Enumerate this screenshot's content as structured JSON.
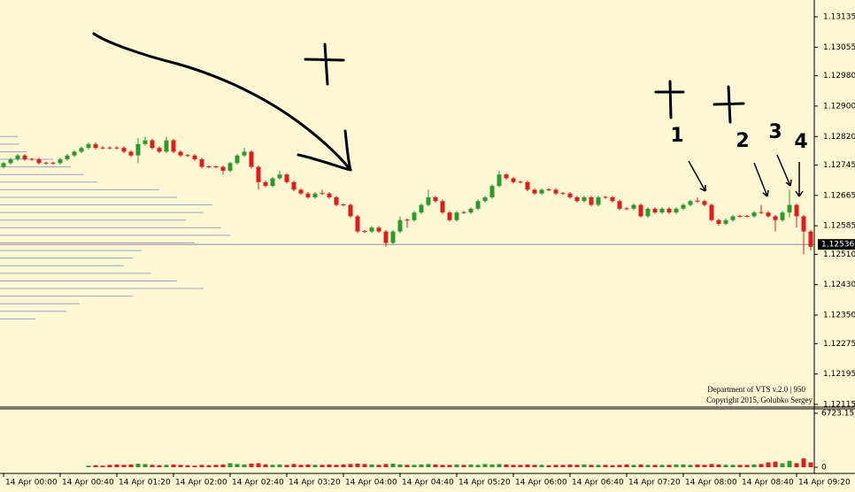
{
  "chart_data": {
    "type": "candlestick",
    "xlim": [
      -0.5,
      114.5
    ],
    "xticks": [
      {
        "value": 0,
        "label": "14 Apr 00:00"
      },
      {
        "value": 8,
        "label": "14 Apr 00:40"
      },
      {
        "value": 16,
        "label": "14 Apr 01:20"
      },
      {
        "value": 24,
        "label": "14 Apr 02:00"
      },
      {
        "value": 32,
        "label": "14 Apr 02:40"
      },
      {
        "value": 40,
        "label": "14 Apr 03:20"
      },
      {
        "value": 48,
        "label": "14 Apr 04:00"
      },
      {
        "value": 56,
        "label": "14 Apr 04:40"
      },
      {
        "value": 64,
        "label": "14 Apr 05:20"
      },
      {
        "value": 72,
        "label": "14 Apr 06:00"
      },
      {
        "value": 80,
        "label": "14 Apr 06:40"
      },
      {
        "value": 88,
        "label": "14 Apr 07:20"
      },
      {
        "value": 96,
        "label": "14 Apr 08:00"
      },
      {
        "value": 104,
        "label": "14 Apr 08:40"
      },
      {
        "value": 112,
        "label": "14 Apr 09:20"
      }
    ],
    "ylim": [
      1.12115,
      1.13135
    ],
    "yticks": [
      1.13135,
      1.13055,
      {
        "value": 1.1298,
        "label": "1.12980"
      },
      {
        "value": 1.129,
        "label": "1.12900"
      },
      {
        "value": 1.1282,
        "label": "1.12820"
      },
      1.12745,
      1.12665,
      1.12585,
      {
        "value": 1.1251,
        "label": "1.12510"
      },
      {
        "value": 1.1243,
        "label": "1.12430"
      },
      {
        "value": 1.1235,
        "label": "1.12350"
      },
      1.12275,
      1.12195,
      1.12115
    ],
    "colors": {
      "up": "#2b9a2b",
      "down": "#e11b1b"
    },
    "open": [
      1.1274,
      1.1275,
      1.1276,
      1.1277,
      1.1276,
      1.1276,
      1.1275,
      1.1275,
      1.1275,
      1.1276,
      1.1277,
      1.1278,
      1.1279,
      1.128,
      1.1279,
      1.1279,
      1.1279,
      1.1279,
      1.1278,
      1.1277,
      1.128,
      1.1281,
      1.1279,
      1.1278,
      1.1281,
      1.1278,
      1.1277,
      1.1277,
      1.1276,
      1.1274,
      1.1274,
      1.1274,
      1.1273,
      1.1275,
      1.1277,
      1.1278,
      1.1274,
      1.127,
      1.1269,
      1.1271,
      1.1272,
      1.127,
      1.1268,
      1.1267,
      1.1266,
      1.1267,
      1.1267,
      1.1266,
      1.1264,
      1.1264,
      1.1261,
      1.1257,
      1.1257,
      1.1258,
      1.1257,
      1.1254,
      1.1257,
      1.126,
      1.126,
      1.1262,
      1.1264,
      1.1266,
      1.1265,
      1.1262,
      1.126,
      1.1262,
      1.1262,
      1.1263,
      1.1265,
      1.1266,
      1.1269,
      1.1272,
      1.1271,
      1.127,
      1.127,
      1.1268,
      1.1267,
      1.1268,
      1.1268,
      1.1267,
      1.1267,
      1.1266,
      1.1265,
      1.1266,
      1.1264,
      1.1266,
      1.1266,
      1.1265,
      1.1263,
      1.1263,
      1.1264,
      1.1261,
      1.1263,
      1.1262,
      1.1263,
      1.1262,
      1.1263,
      1.1264,
      1.1265,
      1.1265,
      1.1264,
      1.126,
      1.1259,
      1.126,
      1.1261,
      1.1261,
      1.1261,
      1.1262,
      1.1262,
      1.1261,
      1.126,
      1.1262,
      1.1264,
      1.1261,
      1.1257
    ],
    "high": [
      1.12754,
      1.12764,
      1.12774,
      1.12774,
      1.12764,
      1.12764,
      1.12754,
      1.12754,
      1.12764,
      1.12774,
      1.12784,
      1.12794,
      1.12804,
      1.12804,
      1.12794,
      1.12794,
      1.12794,
      1.12794,
      1.12784,
      1.12816,
      1.1282,
      1.12814,
      1.12794,
      1.1282,
      1.12814,
      1.12784,
      1.12774,
      1.12774,
      1.12764,
      1.12744,
      1.12744,
      1.12744,
      1.12754,
      1.12774,
      1.1279,
      1.12784,
      1.12744,
      1.12704,
      1.12714,
      1.1273,
      1.12724,
      1.12704,
      1.12684,
      1.12674,
      1.12674,
      1.1268,
      1.12674,
      1.12664,
      1.12644,
      1.12644,
      1.12614,
      1.12574,
      1.12584,
      1.12584,
      1.12574,
      1.12574,
      1.1261,
      1.12604,
      1.12624,
      1.12644,
      1.1268,
      1.12664,
      1.12654,
      1.12624,
      1.12624,
      1.12624,
      1.12634,
      1.12654,
      1.12664,
      1.12694,
      1.1273,
      1.12724,
      1.12714,
      1.12704,
      1.12704,
      1.12684,
      1.12684,
      1.12684,
      1.12684,
      1.12674,
      1.12674,
      1.12664,
      1.12664,
      1.12664,
      1.12664,
      1.12664,
      1.12664,
      1.12654,
      1.12634,
      1.12644,
      1.12644,
      1.12634,
      1.12634,
      1.12634,
      1.12634,
      1.12634,
      1.12644,
      1.12654,
      1.1266,
      1.12654,
      1.12644,
      1.12604,
      1.12604,
      1.12614,
      1.12614,
      1.12614,
      1.12624,
      1.1264,
      1.12624,
      1.12614,
      1.12624,
      1.1268,
      1.12644,
      1.12614,
      1.12574
    ],
    "low": [
      1.12736,
      1.12746,
      1.12756,
      1.12756,
      1.12756,
      1.12746,
      1.12746,
      1.12746,
      1.12746,
      1.12756,
      1.12766,
      1.12776,
      1.12786,
      1.12786,
      1.12786,
      1.12786,
      1.12786,
      1.12776,
      1.12766,
      1.1275,
      1.12796,
      1.12786,
      1.12776,
      1.12776,
      1.12776,
      1.12766,
      1.12766,
      1.12756,
      1.12736,
      1.12736,
      1.12736,
      1.1272,
      1.12726,
      1.12746,
      1.12766,
      1.12736,
      1.1268,
      1.12686,
      1.12686,
      1.12706,
      1.12696,
      1.12676,
      1.12666,
      1.12656,
      1.12656,
      1.12666,
      1.12656,
      1.12636,
      1.12636,
      1.12606,
      1.12566,
      1.12566,
      1.12566,
      1.12566,
      1.1253,
      1.12536,
      1.12566,
      1.1258,
      1.12596,
      1.12616,
      1.12636,
      1.12646,
      1.12616,
      1.12596,
      1.12596,
      1.12616,
      1.12616,
      1.12626,
      1.12646,
      1.12656,
      1.12686,
      1.12706,
      1.12696,
      1.12696,
      1.12676,
      1.12666,
      1.12666,
      1.12676,
      1.12666,
      1.12666,
      1.12656,
      1.12646,
      1.12646,
      1.12636,
      1.12636,
      1.12656,
      1.12646,
      1.12626,
      1.12626,
      1.12626,
      1.12606,
      1.12606,
      1.12616,
      1.12616,
      1.12616,
      1.12616,
      1.12626,
      1.12636,
      1.12646,
      1.12636,
      1.12596,
      1.12586,
      1.12586,
      1.12596,
      1.12606,
      1.12606,
      1.12606,
      1.12616,
      1.12606,
      1.1257,
      1.12596,
      1.12606,
      1.1258,
      1.1251,
      1.1252
    ],
    "close": [
      1.1275,
      1.1276,
      1.1277,
      1.1276,
      1.1276,
      1.1275,
      1.1275,
      1.1275,
      1.1276,
      1.1277,
      1.1278,
      1.1279,
      1.128,
      1.1279,
      1.1279,
      1.1279,
      1.1279,
      1.1278,
      1.1277,
      1.128,
      1.1281,
      1.1279,
      1.1278,
      1.1281,
      1.1278,
      1.1277,
      1.1277,
      1.1276,
      1.1274,
      1.1274,
      1.1274,
      1.1273,
      1.1275,
      1.1277,
      1.1278,
      1.1274,
      1.127,
      1.1269,
      1.1271,
      1.1272,
      1.127,
      1.1268,
      1.1267,
      1.1266,
      1.1267,
      1.1267,
      1.1266,
      1.1264,
      1.1264,
      1.1261,
      1.1257,
      1.1257,
      1.1258,
      1.1257,
      1.1254,
      1.1257,
      1.126,
      1.126,
      1.1262,
      1.1264,
      1.1266,
      1.1265,
      1.1262,
      1.126,
      1.1262,
      1.1262,
      1.1263,
      1.1265,
      1.1266,
      1.1269,
      1.1272,
      1.1271,
      1.127,
      1.127,
      1.1268,
      1.1267,
      1.1268,
      1.1268,
      1.1267,
      1.1267,
      1.1266,
      1.1265,
      1.1266,
      1.1264,
      1.1266,
      1.1266,
      1.1265,
      1.1263,
      1.1263,
      1.1264,
      1.1261,
      1.1263,
      1.1262,
      1.1263,
      1.1262,
      1.1263,
      1.1264,
      1.1265,
      1.1265,
      1.1264,
      1.126,
      1.1259,
      1.126,
      1.1261,
      1.1261,
      1.1261,
      1.1262,
      1.1262,
      1.1261,
      1.126,
      1.1262,
      1.1264,
      1.1261,
      1.1257,
      1.1253
    ],
    "current_price": 1.12536,
    "volume": {
      "ylim": [
        0,
        6723.15
      ],
      "yticks": [
        6723.15,
        0
      ],
      "values": [
        0,
        0,
        0,
        0,
        0,
        0,
        0,
        0,
        0,
        0,
        0,
        0,
        200,
        250,
        200,
        300,
        350,
        300,
        350,
        450,
        400,
        300,
        250,
        300,
        350,
        300,
        250,
        200,
        300,
        250,
        300,
        350,
        500,
        400,
        350,
        450,
        500,
        350,
        300,
        350,
        300,
        400,
        300,
        350,
        300,
        300,
        350,
        300,
        350,
        400,
        450,
        400,
        350,
        300,
        400,
        450,
        350,
        300,
        300,
        350,
        400,
        350,
        300,
        300,
        350,
        300,
        350,
        300,
        400,
        350,
        400,
        350,
        300,
        300,
        350,
        300,
        300,
        250,
        300,
        300,
        350,
        300,
        350,
        300,
        300,
        300,
        250,
        300,
        350,
        300,
        350,
        300,
        300,
        300,
        300,
        350,
        350,
        300,
        350,
        300,
        400,
        350,
        300,
        300,
        300,
        300,
        350,
        400,
        600,
        700,
        500,
        800,
        500,
        1100,
        600
      ]
    },
    "volume_profile": {
      "prices": [
        1.1282,
        1.128,
        1.1278,
        1.1276,
        1.1274,
        1.1272,
        1.127,
        1.1268,
        1.1266,
        1.1264,
        1.1262,
        1.126,
        1.1258,
        1.1256,
        1.1254,
        1.1252,
        1.125,
        1.1248,
        1.1246,
        1.1244,
        1.1242,
        1.124,
        1.1238,
        1.1236,
        1.1234
      ],
      "values": [
        20,
        22,
        30,
        60,
        80,
        95,
        110,
        180,
        200,
        240,
        230,
        210,
        250,
        260,
        220,
        160,
        150,
        140,
        170,
        200,
        230,
        150,
        90,
        75,
        40
      ]
    },
    "annotations": [
      "1",
      "2",
      "3",
      "4"
    ],
    "watermark": [
      "Department of VTS  v.2.0 | 950",
      "Copyright 2015, Golubko Sergey"
    ]
  }
}
